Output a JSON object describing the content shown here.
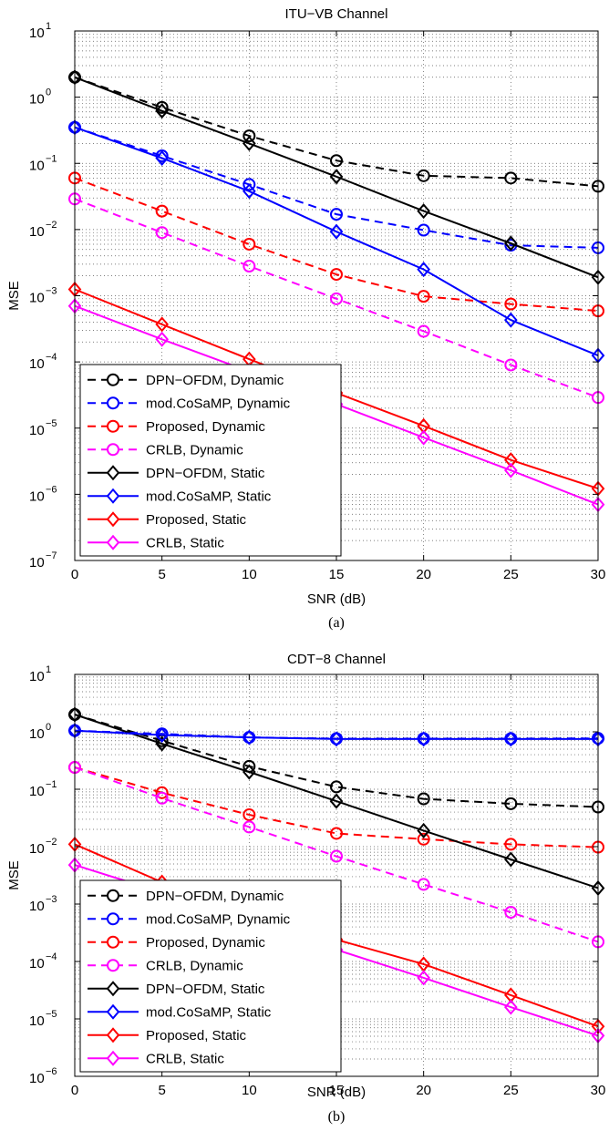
{
  "chart_data": [
    {
      "type": "line",
      "title": "ITU−VB Channel",
      "xlabel": "SNR (dB)",
      "ylabel": "MSE",
      "caption": "(a)",
      "x": [
        0,
        5,
        10,
        15,
        20,
        25,
        30
      ],
      "xlim": [
        0,
        30
      ],
      "ylim": [
        1e-07,
        10
      ],
      "yscale": "log",
      "xticks": [
        "0",
        "5",
        "10",
        "15",
        "20",
        "25",
        "30"
      ],
      "yticks": [
        {
          "base": "10",
          "exp": "1"
        },
        {
          "base": "10",
          "exp": "0"
        },
        {
          "base": "10",
          "exp": "−1"
        },
        {
          "base": "10",
          "exp": "−2"
        },
        {
          "base": "10",
          "exp": "−3"
        },
        {
          "base": "10",
          "exp": "−4"
        },
        {
          "base": "10",
          "exp": "−5"
        },
        {
          "base": "10",
          "exp": "−6"
        },
        {
          "base": "10",
          "exp": "−7"
        }
      ],
      "grid": true,
      "legend_position": "lower-left",
      "series": [
        {
          "name": "DPN−OFDM, Dynamic",
          "color": "#000000",
          "dash": true,
          "marker": "circle",
          "values": [
            2.0,
            0.7,
            0.26,
            0.11,
            0.065,
            0.06,
            0.045
          ]
        },
        {
          "name": "mod.CoSaMP, Dynamic",
          "color": "#0000ff",
          "dash": true,
          "marker": "circle",
          "values": [
            0.35,
            0.13,
            0.048,
            0.017,
            0.0098,
            0.0058,
            0.0053
          ]
        },
        {
          "name": "Proposed, Dynamic",
          "color": "#ff0000",
          "dash": true,
          "marker": "circle",
          "values": [
            0.06,
            0.019,
            0.006,
            0.0021,
            0.00098,
            0.00075,
            0.00059
          ]
        },
        {
          "name": "CRLB, Dynamic",
          "color": "#ff00ff",
          "dash": true,
          "marker": "circle",
          "values": [
            0.029,
            0.009,
            0.0028,
            0.0009,
            0.00029,
            9e-05,
            2.9e-05
          ]
        },
        {
          "name": "DPN−OFDM, Static",
          "color": "#000000",
          "dash": false,
          "marker": "diamond",
          "values": [
            2.0,
            0.62,
            0.2,
            0.063,
            0.019,
            0.0062,
            0.0019
          ]
        },
        {
          "name": "mod.CoSaMP, Static",
          "color": "#0000ff",
          "dash": false,
          "marker": "diamond",
          "values": [
            0.35,
            0.12,
            0.038,
            0.0093,
            0.0025,
            0.00043,
            0.000125
          ]
        },
        {
          "name": "Proposed, Static",
          "color": "#ff0000",
          "dash": false,
          "marker": "diamond",
          "values": [
            0.00125,
            0.00037,
            0.00011,
            3.4e-05,
            1.08e-05,
            3.3e-06,
            1.22e-06
          ]
        },
        {
          "name": "CRLB, Static",
          "color": "#ff00ff",
          "dash": false,
          "marker": "diamond",
          "values": [
            0.0007,
            0.00022,
            7.2e-05,
            2.3e-05,
            7.2e-06,
            2.3e-06,
            7e-07
          ]
        }
      ]
    },
    {
      "type": "line",
      "title": "CDT−8 Channel",
      "xlabel": "SNR (dB)",
      "ylabel": "MSE",
      "caption": "(b)",
      "x": [
        0,
        5,
        10,
        15,
        20,
        25,
        30
      ],
      "xlim": [
        0,
        30
      ],
      "ylim": [
        1e-06,
        10
      ],
      "yscale": "log",
      "xticks": [
        "0",
        "5",
        "10",
        "15",
        "20",
        "25",
        "30"
      ],
      "yticks": [
        {
          "base": "10",
          "exp": "1"
        },
        {
          "base": "10",
          "exp": "0"
        },
        {
          "base": "10",
          "exp": "−1"
        },
        {
          "base": "10",
          "exp": "−2"
        },
        {
          "base": "10",
          "exp": "−3"
        },
        {
          "base": "10",
          "exp": "−4"
        },
        {
          "base": "10",
          "exp": "−5"
        },
        {
          "base": "10",
          "exp": "−6"
        }
      ],
      "grid": true,
      "legend_position": "lower-left",
      "series": [
        {
          "name": "DPN−OFDM, Dynamic",
          "color": "#000000",
          "dash": true,
          "marker": "circle",
          "values": [
            2.0,
            0.7,
            0.25,
            0.11,
            0.068,
            0.056,
            0.049
          ]
        },
        {
          "name": "mod.CoSaMP, Dynamic",
          "color": "#0000ff",
          "dash": true,
          "marker": "circle",
          "values": [
            1.05,
            0.92,
            0.8,
            0.76,
            0.76,
            0.76,
            0.77
          ]
        },
        {
          "name": "Proposed, Dynamic",
          "color": "#ff0000",
          "dash": true,
          "marker": "circle",
          "values": [
            0.24,
            0.087,
            0.036,
            0.017,
            0.0135,
            0.011,
            0.0098
          ]
        },
        {
          "name": "CRLB, Dynamic",
          "color": "#ff00ff",
          "dash": true,
          "marker": "circle",
          "values": [
            0.24,
            0.07,
            0.022,
            0.0068,
            0.0022,
            0.00072,
            0.00022
          ]
        },
        {
          "name": "DPN−OFDM, Static",
          "color": "#000000",
          "dash": false,
          "marker": "diamond",
          "values": [
            2.0,
            0.62,
            0.2,
            0.062,
            0.019,
            0.006,
            0.0019
          ]
        },
        {
          "name": "mod.CoSaMP, Static",
          "color": "#0000ff",
          "dash": false,
          "marker": "diamond",
          "values": [
            1.05,
            0.88,
            0.8,
            0.75,
            0.75,
            0.75,
            0.75
          ]
        },
        {
          "name": "Proposed, Static",
          "color": "#ff0000",
          "dash": false,
          "marker": "diamond",
          "values": [
            0.011,
            0.0024,
            0.0008,
            0.00024,
            9e-05,
            2.6e-05,
            7.4e-06
          ]
        },
        {
          "name": "CRLB, Static",
          "color": "#ff00ff",
          "dash": false,
          "marker": "diamond",
          "values": [
            0.0048,
            0.0016,
            0.00052,
            0.00016,
            5.2e-05,
            1.6e-05,
            5.1e-06
          ]
        }
      ]
    }
  ]
}
